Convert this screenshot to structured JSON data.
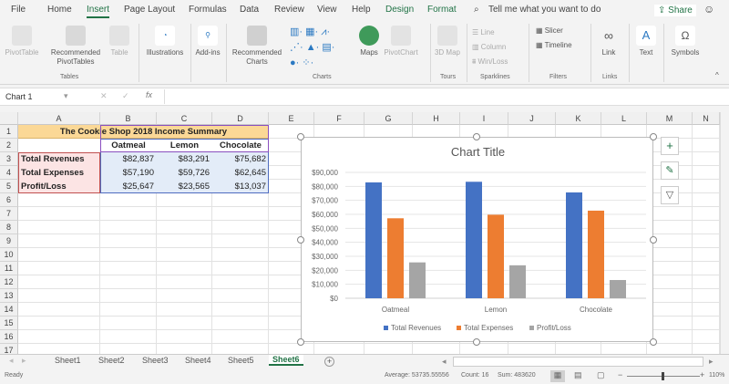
{
  "menu": [
    "File",
    "Home",
    "Insert",
    "Page Layout",
    "Formulas",
    "Data",
    "Review",
    "View",
    "Help",
    "Design",
    "Format"
  ],
  "active_menu": "Insert",
  "tell_me": "Tell me what you want to do",
  "share": "Share",
  "ribbon": {
    "pivottable": "PivotTable",
    "rec_pivot": "Recommended PivotTables",
    "table": "Table",
    "tables_group": "Tables",
    "illustrations": "Illustrations",
    "addins": "Add-ins",
    "rec_charts": "Recommended Charts",
    "maps": "Maps",
    "pivotchart": "PivotChart",
    "charts_group": "Charts",
    "map3d": "3D Map",
    "tours_group": "Tours",
    "line": "Line",
    "column": "Column",
    "winloss": "Win/Loss",
    "sparklines_group": "Sparklines",
    "slicer": "Slicer",
    "timeline": "Timeline",
    "filters_group": "Filters",
    "link": "Link",
    "links_group": "Links",
    "text": "Text",
    "symbols": "Symbols"
  },
  "namebox": "Chart 1",
  "columns": [
    "A",
    "B",
    "C",
    "D",
    "E",
    "F",
    "G",
    "H",
    "I",
    "J",
    "K",
    "L",
    "M",
    "N"
  ],
  "rows": [
    "1",
    "2",
    "3",
    "4",
    "5",
    "6",
    "7",
    "8",
    "9",
    "10",
    "11",
    "12",
    "13",
    "14",
    "15",
    "16",
    "17"
  ],
  "sheet": {
    "title": "The Cookie Shop 2018 Income Summary",
    "headers": [
      "Oatmeal",
      "Lemon",
      "Chocolate"
    ],
    "data": [
      {
        "label": "Total Revenues",
        "values": [
          "$82,837",
          "$83,291",
          "$75,682"
        ]
      },
      {
        "label": "Total Expenses",
        "values": [
          "$57,190",
          "$59,726",
          "$62,645"
        ]
      },
      {
        "label": "Profit/Loss",
        "values": [
          "$25,647",
          "$23,565",
          "$13,037"
        ]
      }
    ]
  },
  "chart_data": {
    "type": "bar",
    "title": "Chart Title",
    "categories": [
      "Oatmeal",
      "Lemon",
      "Chocolate"
    ],
    "series": [
      {
        "name": "Total Revenues",
        "values": [
          82837,
          83291,
          75682
        ],
        "color": "#4472c4"
      },
      {
        "name": "Total Expenses",
        "values": [
          57190,
          59726,
          62645
        ],
        "color": "#ed7d31"
      },
      {
        "name": "Profit/Loss",
        "values": [
          25647,
          23565,
          13037
        ],
        "color": "#a5a5a5"
      }
    ],
    "yticks": [
      "$0",
      "$10,000",
      "$20,000",
      "$30,000",
      "$40,000",
      "$50,000",
      "$60,000",
      "$70,000",
      "$80,000",
      "$90,000"
    ],
    "ylim": [
      0,
      90000
    ],
    "grid": true,
    "legend": "bottom"
  },
  "sheets": [
    "Sheet1",
    "Sheet2",
    "Sheet3",
    "Sheet4",
    "Sheet5",
    "Sheet6"
  ],
  "active_sheet": "Sheet6",
  "status": {
    "ready": "Ready",
    "average": "Average: 53735.55556",
    "count": "Count: 16",
    "sum": "Sum: 483620",
    "zoom": "110%"
  }
}
